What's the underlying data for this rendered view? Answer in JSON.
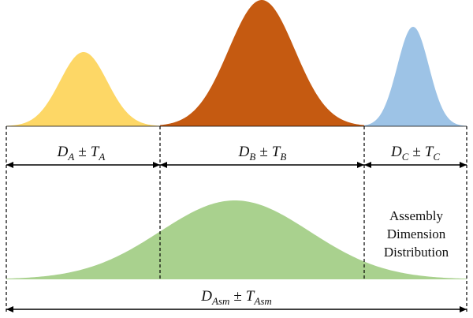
{
  "colors": {
    "curve_a": "#FDD766",
    "curve_b": "#C55A11",
    "curve_c": "#9DC3E6",
    "assembly": "#A9D18E",
    "line": "#000000"
  },
  "labels": {
    "a": {
      "symbol": "D",
      "sub": "A",
      "pm": "±",
      "tol": "T",
      "tol_sub": "A"
    },
    "b": {
      "symbol": "D",
      "sub": "B",
      "pm": "±",
      "tol": "T",
      "tol_sub": "B"
    },
    "c": {
      "symbol": "D",
      "sub": "C",
      "pm": "±",
      "tol": "T",
      "tol_sub": "C"
    },
    "assembly": {
      "symbol": "D",
      "sub": "Asm",
      "pm": "±",
      "tol": "T",
      "tol_sub": "Asm"
    }
  },
  "caption": {
    "line1": "Assembly",
    "line2": "Dimension",
    "line3": "Distribution"
  }
}
